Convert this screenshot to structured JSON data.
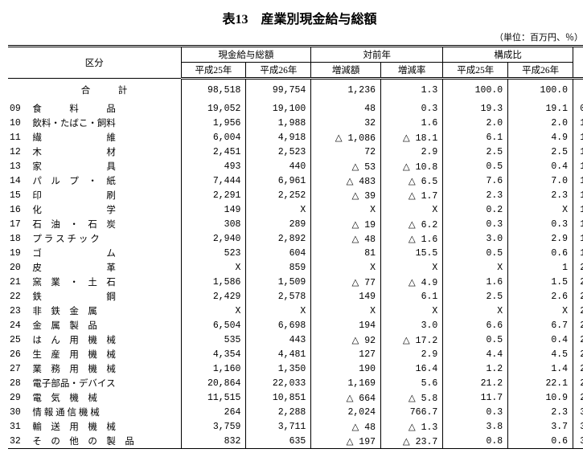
{
  "title": "表13　産業別現金給与総額",
  "unit": "（単位：百万円、％）",
  "headers": {
    "category": "区分",
    "group1": "現金給与総額",
    "group2": "対前年",
    "group3": "構成比",
    "h25": "平成25年",
    "h26": "平成26年",
    "diff": "増減額",
    "rate": "増減率"
  },
  "total": {
    "label": "合　　　計",
    "h25": "98,518",
    "h26": "99,754",
    "diff": "1,236",
    "rate": "1.3",
    "c25": "100.0",
    "c26": "100.0"
  },
  "rows": [
    {
      "code": "09",
      "name": "食　　　料　　　品",
      "h25": "19,052",
      "h26": "19,100",
      "diff": "48",
      "rate": "0.3",
      "c25": "19.3",
      "c26": "19.1"
    },
    {
      "code": "10",
      "name": "飲料・たばこ・飼料",
      "h25": "1,956",
      "h26": "1,988",
      "diff": "32",
      "rate": "1.6",
      "c25": "2.0",
      "c26": "2.0"
    },
    {
      "code": "11",
      "name": "繊　　　　　　　維",
      "h25": "6,004",
      "h26": "4,918",
      "diff": "△ 1,086",
      "rate": "△ 18.1",
      "c25": "6.1",
      "c26": "4.9"
    },
    {
      "code": "12",
      "name": "木　　　　　　　材",
      "h25": "2,451",
      "h26": "2,523",
      "diff": "72",
      "rate": "2.9",
      "c25": "2.5",
      "c26": "2.5"
    },
    {
      "code": "13",
      "name": "家　　　　　　　具",
      "h25": "493",
      "h26": "440",
      "diff": "△ 53",
      "rate": "△ 10.8",
      "c25": "0.5",
      "c26": "0.4"
    },
    {
      "code": "14",
      "name": "パ　ル　プ　・　紙",
      "h25": "7,444",
      "h26": "6,961",
      "diff": "△ 483",
      "rate": "△ 6.5",
      "c25": "7.6",
      "c26": "7.0"
    },
    {
      "code": "15",
      "name": "印　　　　　　　刷",
      "h25": "2,291",
      "h26": "2,252",
      "diff": "△ 39",
      "rate": "△ 1.7",
      "c25": "2.3",
      "c26": "2.3"
    },
    {
      "code": "16",
      "name": "化　　　　　　　学",
      "h25": "149",
      "h26": "X",
      "diff": "X",
      "rate": "X",
      "c25": "0.2",
      "c26": "X"
    },
    {
      "code": "17",
      "name": "石　油　・　石　炭",
      "h25": "308",
      "h26": "289",
      "diff": "△ 19",
      "rate": "△ 6.2",
      "c25": "0.3",
      "c26": "0.3"
    },
    {
      "code": "18",
      "name": "プ ラ ス チ ッ ク",
      "h25": "2,940",
      "h26": "2,892",
      "diff": "△ 48",
      "rate": "△ 1.6",
      "c25": "3.0",
      "c26": "2.9"
    },
    {
      "code": "19",
      "name": "ゴ　　　　　　　ム",
      "h25": "523",
      "h26": "604",
      "diff": "81",
      "rate": "15.5",
      "c25": "0.5",
      "c26": "0.6"
    },
    {
      "code": "20",
      "name": "皮　　　　　　　革",
      "h25": "X",
      "h26": "859",
      "diff": "X",
      "rate": "X",
      "c25": "X",
      "c26": "1"
    },
    {
      "code": "21",
      "name": "窯　業　・　土　石",
      "h25": "1,586",
      "h26": "1,509",
      "diff": "△ 77",
      "rate": "△ 4.9",
      "c25": "1.6",
      "c26": "1.5"
    },
    {
      "code": "22",
      "name": "鉄　　　　　　　鋼",
      "h25": "2,429",
      "h26": "2,578",
      "diff": "149",
      "rate": "6.1",
      "c25": "2.5",
      "c26": "2.6"
    },
    {
      "code": "23",
      "name": "非　鉄　金　属",
      "h25": "X",
      "h26": "X",
      "diff": "X",
      "rate": "X",
      "c25": "X",
      "c26": "X"
    },
    {
      "code": "24",
      "name": "金　属　製　品",
      "h25": "6,504",
      "h26": "6,698",
      "diff": "194",
      "rate": "3.0",
      "c25": "6.6",
      "c26": "6.7"
    },
    {
      "code": "25",
      "name": "は　ん　用　機　械",
      "h25": "535",
      "h26": "443",
      "diff": "△ 92",
      "rate": "△ 17.2",
      "c25": "0.5",
      "c26": "0.4"
    },
    {
      "code": "26",
      "name": "生　産　用　機　械",
      "h25": "4,354",
      "h26": "4,481",
      "diff": "127",
      "rate": "2.9",
      "c25": "4.4",
      "c26": "4.5"
    },
    {
      "code": "27",
      "name": "業　務　用　機　械",
      "h25": "1,160",
      "h26": "1,350",
      "diff": "190",
      "rate": "16.4",
      "c25": "1.2",
      "c26": "1.4"
    },
    {
      "code": "28",
      "name": "電子部品・デバイス",
      "h25": "20,864",
      "h26": "22,033",
      "diff": "1,169",
      "rate": "5.6",
      "c25": "21.2",
      "c26": "22.1"
    },
    {
      "code": "29",
      "name": "電　気　機　械",
      "h25": "11,515",
      "h26": "10,851",
      "diff": "△ 664",
      "rate": "△ 5.8",
      "c25": "11.7",
      "c26": "10.9"
    },
    {
      "code": "30",
      "name": "情 報 通 信 機 械",
      "h25": "264",
      "h26": "2,288",
      "diff": "2,024",
      "rate": "766.7",
      "c25": "0.3",
      "c26": "2.3"
    },
    {
      "code": "31",
      "name": "輸　送　用　機　械",
      "h25": "3,759",
      "h26": "3,711",
      "diff": "△ 48",
      "rate": "△ 1.3",
      "c25": "3.8",
      "c26": "3.7"
    },
    {
      "code": "32",
      "name": "そ　の　他　の　製　品",
      "h25": "832",
      "h26": "635",
      "diff": "△ 197",
      "rate": "△ 23.7",
      "c25": "0.8",
      "c26": "0.6"
    }
  ]
}
